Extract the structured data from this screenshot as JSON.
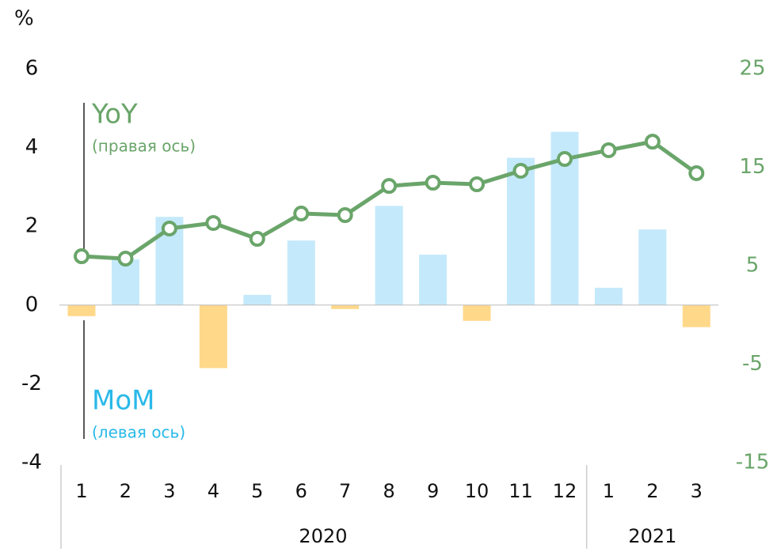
{
  "chart_data": {
    "type": "bar",
    "ylabel": "%",
    "categories": [
      "1",
      "2",
      "3",
      "4",
      "5",
      "6",
      "7",
      "8",
      "9",
      "10",
      "11",
      "12",
      "1",
      "2",
      "3"
    ],
    "year_groups": [
      {
        "name": "2020",
        "span": 12
      },
      {
        "name": "2021",
        "span": 3
      }
    ],
    "series": [
      {
        "name": "MoM",
        "note": "(левая ось)",
        "type": "bar",
        "color": "#c4e9fb",
        "negative_color": "#ffd88a",
        "label_color": "#29b9e8",
        "values": [
          -0.28,
          1.16,
          2.24,
          -1.6,
          0.26,
          1.64,
          -0.1,
          2.52,
          1.28,
          -0.4,
          3.74,
          4.4,
          0.44,
          1.92,
          -0.56
        ]
      },
      {
        "name": "YoY",
        "note": "(правая ось)",
        "type": "line",
        "axis": "y2",
        "color": "#6aa56a",
        "values": [
          5.96,
          5.72,
          8.78,
          9.34,
          7.73,
          10.3,
          10.14,
          13.1,
          13.43,
          13.27,
          14.64,
          15.84,
          16.73,
          17.6,
          14.4
        ]
      }
    ],
    "ylim": [
      -4,
      6
    ],
    "yticks": [
      -4,
      -2,
      0,
      2,
      4,
      6
    ],
    "y2lim": [
      -15,
      25
    ],
    "y2ticks": [
      -15,
      -5,
      5,
      15,
      25
    ]
  }
}
